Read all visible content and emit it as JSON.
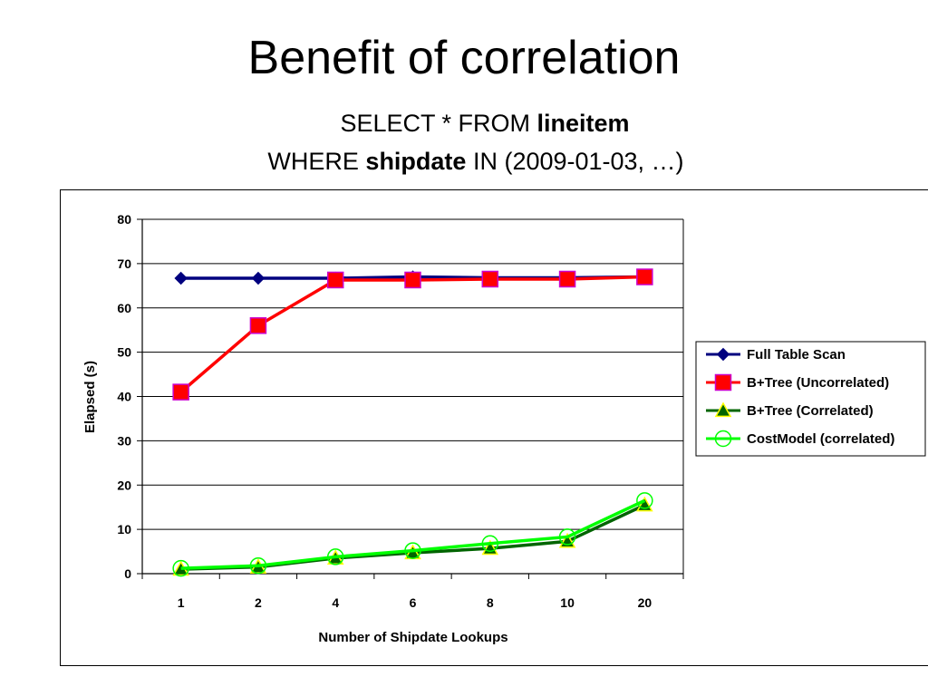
{
  "slide": {
    "title": "Benefit of correlation",
    "query": {
      "line1_prefix": "SELECT * FROM ",
      "line1_bold": "lineitem",
      "line2_prefix": "WHERE ",
      "line2_bold": "shipdate",
      "line2_suffix": " IN (2009-01-03, …)"
    }
  },
  "chart_data": {
    "type": "line",
    "title": "",
    "xlabel": "Number of Shipdate Lookups",
    "ylabel": "Elapsed (s)",
    "categories": [
      "1",
      "2",
      "4",
      "6",
      "8",
      "10",
      "20"
    ],
    "ylim": [
      0,
      80
    ],
    "yticks": [
      0,
      10,
      20,
      30,
      40,
      50,
      60,
      70,
      80
    ],
    "grid": "horizontal",
    "legend_position": "right",
    "series": [
      {
        "name": "Full Table Scan",
        "values": [
          66.7,
          66.7,
          66.7,
          67.0,
          66.8,
          66.8,
          67.0
        ],
        "color": "#00007f",
        "marker": "diamond",
        "marker_fill": "#00007f",
        "marker_stroke": "#00007f"
      },
      {
        "name": "B+Tree (Uncorrelated)",
        "values": [
          41.0,
          56.0,
          66.3,
          66.3,
          66.5,
          66.5,
          67.0
        ],
        "color": "#ff0000",
        "marker": "square",
        "marker_fill": "#ff0000",
        "marker_stroke": "#cc00cc"
      },
      {
        "name": "B+Tree (Correlated)",
        "values": [
          1.0,
          1.5,
          3.5,
          4.7,
          5.7,
          7.3,
          15.5
        ],
        "color": "#006400",
        "marker": "triangle",
        "marker_fill": "#006400",
        "marker_stroke": "#ffff00"
      },
      {
        "name": "CostModel (correlated)",
        "values": [
          1.2,
          1.8,
          3.8,
          5.2,
          6.8,
          8.3,
          16.5
        ],
        "color": "#00ff00",
        "marker": "circle",
        "marker_fill": "none",
        "marker_stroke": "#00ff00"
      }
    ]
  }
}
